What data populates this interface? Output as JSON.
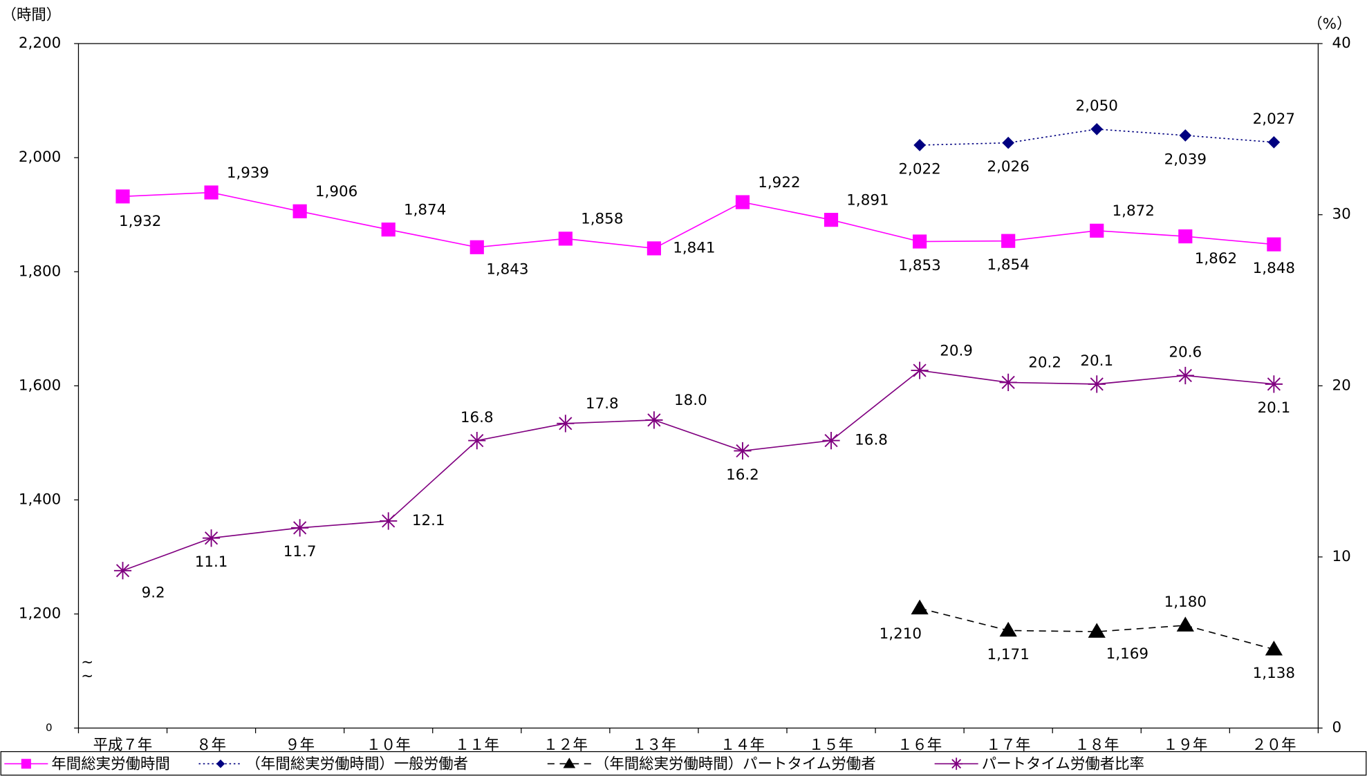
{
  "chart_data": {
    "type": "line",
    "y_label": "（時間）",
    "y2_label": "（%）",
    "categories": [
      "平成７年",
      "８年",
      "９年",
      "１０年",
      "１１年",
      "１２年",
      "１３年",
      "１４年",
      "１５年",
      "１６年",
      "１７年",
      "１８年",
      "１９年",
      "２０年"
    ],
    "ylim": [
      0,
      2200
    ],
    "yticks": [
      0,
      {
        "value": 1200,
        "label": "1,200"
      },
      {
        "value": 1400,
        "label": "1,400"
      },
      {
        "value": 1600,
        "label": "1,600"
      },
      {
        "value": 1800,
        "label": "1,800"
      },
      {
        "value": 2000,
        "label": "2,000"
      },
      {
        "value": 2200,
        "label": "2,200"
      }
    ],
    "axis_break": true,
    "y2lim": [
      0,
      40
    ],
    "y2ticks": [
      0,
      10,
      20,
      30,
      40
    ],
    "legend": "bottom",
    "series": [
      {
        "name": "年間総実労働時間",
        "color": "#ff00ff",
        "marker": "square",
        "dash": "solid",
        "values": [
          1932,
          1939,
          1906,
          1874,
          1843,
          1858,
          1841,
          1922,
          1891,
          1853,
          1854,
          1872,
          1862,
          1848
        ],
        "value_labels": [
          "1,932",
          "1,939",
          "1,906",
          "1,874",
          "1,843",
          "1,858",
          "1,841",
          "1,922",
          "1,891",
          "1,853",
          "1,854",
          "1,872",
          "1,862",
          "1,848"
        ]
      },
      {
        "name": "（年間総実労働時間）一般労働者",
        "color": "#000080",
        "marker": "diamond",
        "dash": "dotted",
        "values": [
          null,
          null,
          null,
          null,
          null,
          null,
          null,
          null,
          null,
          2022,
          2026,
          2050,
          2039,
          2027
        ],
        "value_labels": [
          null,
          null,
          null,
          null,
          null,
          null,
          null,
          null,
          null,
          "2,022",
          "2,026",
          "2,050",
          "2,039",
          "2,027"
        ]
      },
      {
        "name": "（年間総実労働時間）パートタイム労働者",
        "color": "#000000",
        "marker": "triangle",
        "dash": "dashed",
        "values": [
          null,
          null,
          null,
          null,
          null,
          null,
          null,
          null,
          null,
          1210,
          1171,
          1169,
          1180,
          1138
        ],
        "value_labels": [
          null,
          null,
          null,
          null,
          null,
          null,
          null,
          null,
          null,
          "1,210",
          "1,171",
          "1,169",
          "1,180",
          "1,138"
        ]
      },
      {
        "name": "パートタイム労働者比率",
        "color": "#800080",
        "marker": "asterisk",
        "dash": "solid",
        "axis": "y2",
        "values": [
          9.2,
          11.1,
          11.7,
          12.1,
          16.8,
          17.8,
          18.0,
          16.2,
          16.8,
          20.9,
          20.2,
          20.1,
          20.6,
          20.1
        ],
        "value_labels": [
          "9.2",
          "11.1",
          "11.7",
          "12.1",
          "16.8",
          "17.8",
          "18.0",
          "16.2",
          "16.8",
          "20.9",
          "20.2",
          "20.1",
          "20.6",
          "20.1"
        ]
      }
    ]
  }
}
